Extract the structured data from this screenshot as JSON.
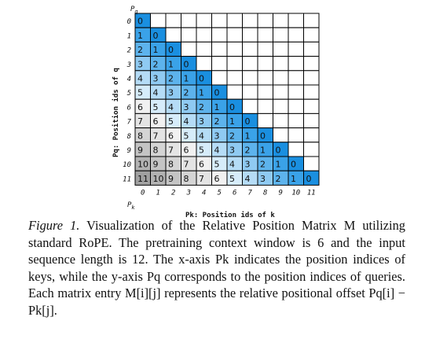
{
  "figure": {
    "y_label_symbol": "P",
    "y_label_subscript": "q",
    "y_axis_title": "Pq: Position ids of q",
    "x_axis_symbol": "P",
    "x_axis_symbol_subscript": "k",
    "x_axis_title": "Pk: Position ids of k",
    "row_ticks": [
      "0",
      "1",
      "2",
      "3",
      "4",
      "5",
      "6",
      "7",
      "8",
      "9",
      "10",
      "11"
    ],
    "col_ticks": [
      "0",
      "1",
      "2",
      "3",
      "4",
      "5",
      "6",
      "7",
      "8",
      "9",
      "10",
      "11"
    ]
  },
  "chart_data": {
    "type": "heatmap",
    "rows": 12,
    "cols": 12,
    "pretraining_window": 6,
    "note_values": "lower-triangular matrix M[i][j] = i - j for j <= i",
    "colors": {
      "0": "#1a8fe0",
      "1": "#3aa2e8",
      "2": "#5db3ec",
      "3": "#8fcaf2",
      "4": "#b5dcf6",
      "5": "#d6ecfa",
      "6": "#f1f1f1",
      "7": "#e4e4e4",
      "8": "#d4d4d4",
      "9": "#c4c4c4",
      "10": "#b2b2b2",
      "11": "#a0a0a0"
    }
  },
  "caption": {
    "label": "Figure 1.",
    "text": "Visualization of the Relative Position Matrix M utilizing standard RoPE. The pretraining context window is 6 and the input sequence length is 12. The x-axis Pk indicates the position indices of keys, while the y-axis Pq corresponds to the position indices of queries. Each matrix entry M[i][j] represents the relative positional offset Pq[i] − Pk[j]."
  }
}
